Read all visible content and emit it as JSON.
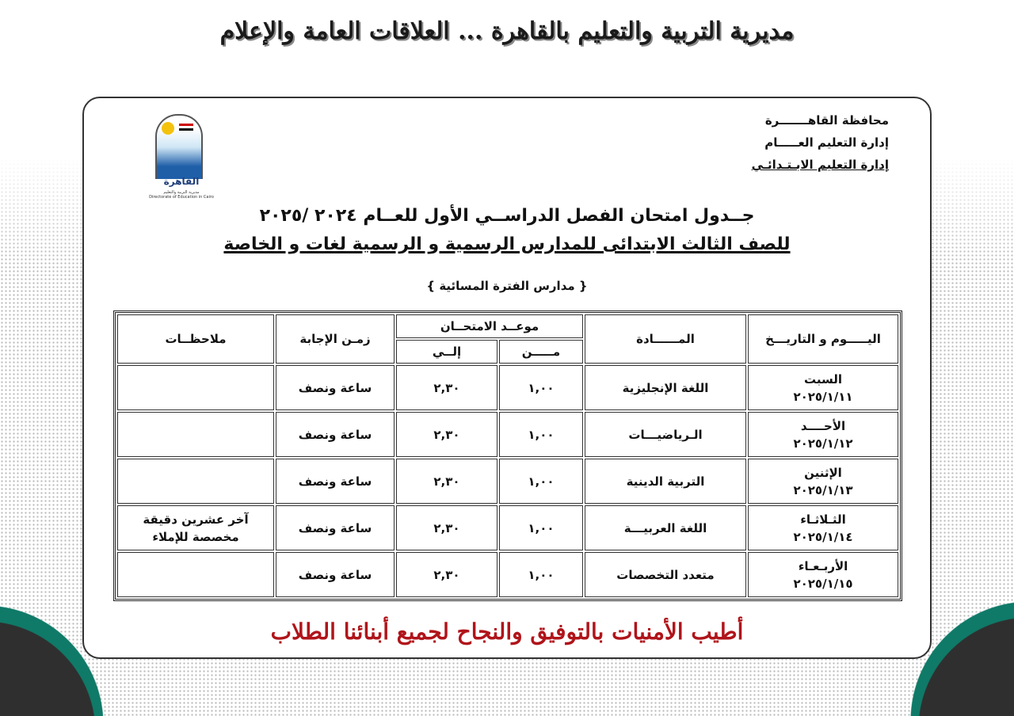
{
  "banner_title": "مديرية التربية والتعليم بالقاهرة ... العلاقات العامة والإعلام",
  "org": {
    "line1": "محافظة القاهـــــــرة",
    "line2": "إدارة التعليم العـــــام",
    "line3": "إدارة التعليم الابـتـدائـي"
  },
  "logo": {
    "title": "القاهرة",
    "subtitle_ar": "مديرية التربية والتعليم",
    "subtitle_en": "Directorate of Education in Cairo"
  },
  "heading": {
    "line1": "جــدول امتحان الفصل الدراســي الأول للعــام ٢٠٢٤ /٢٠٢٥",
    "line2": "للصف الثالث الابتدائى للمدارس الرسمية و الرسمية لغات و الخاصة",
    "line3": "{ مدارس الفترة المسائية }"
  },
  "table": {
    "headers": {
      "day": "اليـــــوم و التاريـــخ",
      "subject": "المــــــادة",
      "exam_time": "موعــد الامتحــان",
      "from": "مـــــن",
      "to": "إلــي",
      "duration": "زمـن الإجابة",
      "notes": "ملاحظــات"
    },
    "rows": [
      {
        "day": "السبت",
        "date": "٢٠٢٥/١/١١",
        "subject": "اللغة الإنجليزية",
        "from": "١,٠٠",
        "to": "٢,٣٠",
        "duration": "ساعة ونصف",
        "notes": ""
      },
      {
        "day": "الأحــــد",
        "date": "٢٠٢٥/١/١٢",
        "subject": "الـرياضيـــات",
        "from": "١,٠٠",
        "to": "٢,٣٠",
        "duration": "ساعة ونصف",
        "notes": ""
      },
      {
        "day": "الإثنين",
        "date": "٢٠٢٥/١/١٣",
        "subject": "التربية الدينية",
        "from": "١,٠٠",
        "to": "٢,٣٠",
        "duration": "ساعة ونصف",
        "notes": ""
      },
      {
        "day": "الثـلاثـاء",
        "date": "٢٠٢٥/١/١٤",
        "subject": "اللغة العربيـــة",
        "from": "١,٠٠",
        "to": "٢,٣٠",
        "duration": "ساعة ونصف",
        "notes": "آخر عشرين دقيقة مخصصة للإملاء"
      },
      {
        "day": "الأربـعـاء",
        "date": "٢٠٢٥/١/١٥",
        "subject": "متعدد التخصصات",
        "from": "١,٠٠",
        "to": "٢,٣٠",
        "duration": "ساعة ونصف",
        "notes": ""
      }
    ]
  },
  "footer": "أطيب الأمنيات بالتوفيق والنجاح لجميع أبنائنا الطلاب",
  "colors": {
    "footer_red": "#b0141a",
    "corner_teal": "#0f7a68",
    "corner_dark": "#2f2f2f"
  }
}
